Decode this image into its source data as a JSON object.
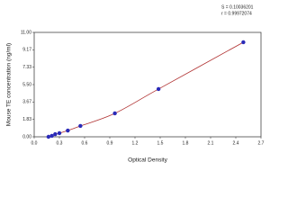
{
  "chart_data": {
    "type": "scatter",
    "x_label": "Optical Density",
    "y_label": "Mouse TE concentration (ng/ml)",
    "annotations": [
      "S = 0.10036201",
      "r = 0.99972074"
    ],
    "x": [
      0.17,
      0.21,
      0.25,
      0.3,
      0.4,
      0.55,
      0.96,
      1.48,
      2.49
    ],
    "values": [
      0,
      0.1,
      0.28,
      0.38,
      0.66,
      1.14,
      2.47,
      5.03,
      9.96
    ],
    "color": "#2a2ab8",
    "line_color": "#b03030",
    "xlim": [
      0,
      2.7
    ],
    "xticks": [
      {
        "value": 0,
        "label": "0.0"
      },
      0.3,
      0.6,
      0.9,
      1.2,
      1.5,
      1.8,
      2.1,
      2.4,
      2.7
    ],
    "ylim": [
      0,
      11
    ],
    "yticks": [
      {
        "value": 0,
        "label": "0.00"
      },
      1.83,
      3.67,
      {
        "value": 5.5,
        "label": "5.50"
      },
      7.33,
      9.17,
      {
        "value": 11,
        "label": "11.00"
      }
    ]
  }
}
